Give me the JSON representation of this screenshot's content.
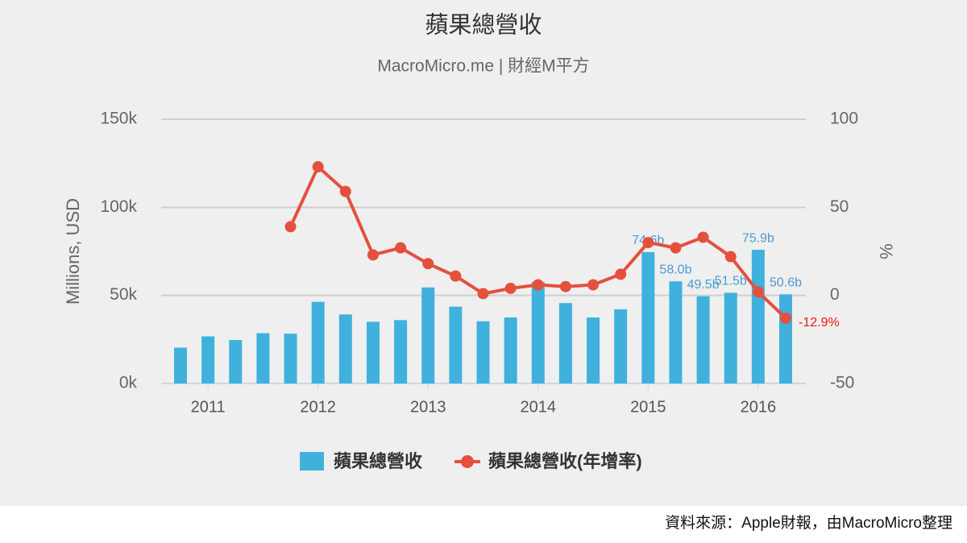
{
  "chart_data": {
    "type": "bar",
    "title": "蘋果總營收",
    "subtitle": "MacroMicro.me | 財經M平方",
    "y_label": "Millions, USD",
    "y2_label": "%",
    "source": "資料來源：Apple財報，由MacroMicro整理",
    "categories": [
      null,
      "2011",
      null,
      null,
      null,
      "2012",
      null,
      null,
      null,
      "2013",
      null,
      null,
      null,
      "2014",
      null,
      null,
      null,
      "2015",
      null,
      null,
      null,
      "2016",
      null
    ],
    "series": [
      {
        "name": "蘋果總營收",
        "type": "bar",
        "color": "#3fb1dc",
        "values": [
          20343,
          26741,
          24667,
          28571,
          28270,
          46333,
          39186,
          35023,
          35966,
          54512,
          43603,
          35323,
          37472,
          57594,
          45646,
          37432,
          42123,
          74600,
          58000,
          49500,
          51500,
          75900,
          50600
        ],
        "value_labels": [
          null,
          null,
          null,
          null,
          null,
          null,
          null,
          null,
          null,
          null,
          null,
          null,
          null,
          null,
          null,
          null,
          null,
          "74.6b",
          "58.0b",
          "49.5b",
          "51.5b",
          "75.9b",
          "50.6b"
        ],
        "label_color": "#4a9ad4"
      },
      {
        "name": "蘋果總營收(年增率)",
        "type": "line",
        "color": "#e5503d",
        "axis": "y2",
        "values": [
          null,
          null,
          null,
          null,
          39,
          73,
          59,
          23,
          27,
          18,
          11,
          1,
          4,
          6,
          5,
          6,
          12,
          30,
          27,
          33,
          22,
          2,
          -12.9
        ],
        "value_labels": [
          null,
          null,
          null,
          null,
          null,
          null,
          null,
          null,
          null,
          null,
          null,
          null,
          null,
          null,
          null,
          null,
          null,
          null,
          null,
          null,
          null,
          null,
          "-12.9%"
        ],
        "label_color": "#e8190f"
      }
    ],
    "ylim": [
      0,
      150000
    ],
    "yticks": [
      {
        "value": 0,
        "label": "0k"
      },
      {
        "value": 50000,
        "label": "50k"
      },
      {
        "value": 100000,
        "label": "100k"
      },
      {
        "value": 150000,
        "label": "150k"
      }
    ],
    "y2lim": [
      -50,
      100
    ],
    "y2ticks": [
      -50,
      0,
      50,
      100
    ],
    "grid": true,
    "legend": "bottom"
  }
}
